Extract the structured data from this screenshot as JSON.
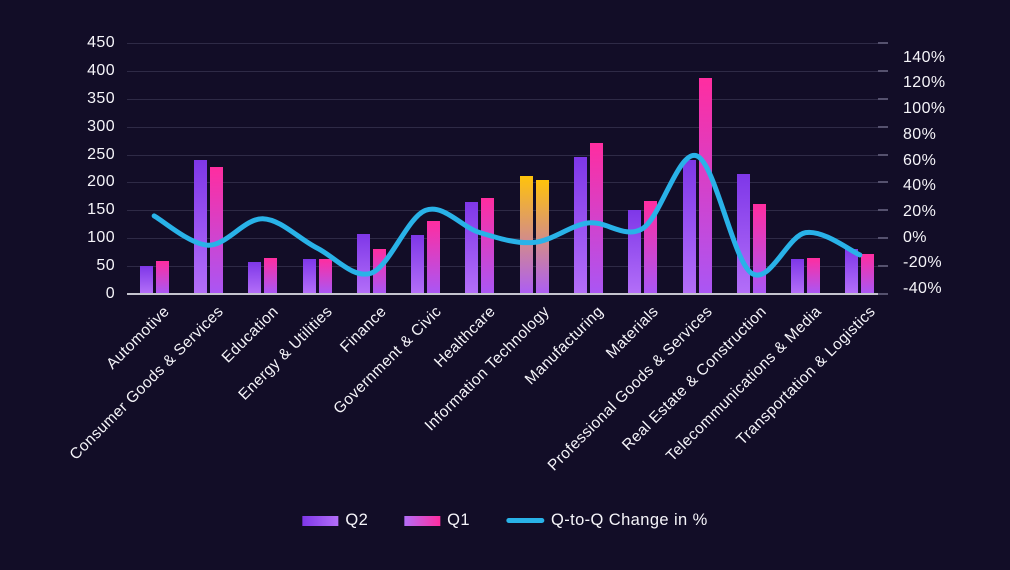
{
  "chart_data": {
    "type": "combo-bar-line",
    "title": "",
    "categories": [
      "Automotive",
      "Consumer Goods & Services",
      "Education",
      "Energy & Utilities",
      "Finance",
      "Government & Civic",
      "Healthcare",
      "Information Technology",
      "Manufacturing",
      "Materials",
      "Professional Goods & Services",
      "Real Estate & Construction",
      "Telecommunications & Media",
      "Transportation & Logistics"
    ],
    "series": [
      {
        "name": "Q2",
        "type": "bar",
        "axis": "left",
        "values": [
          50,
          240,
          57,
          62,
          107,
          105,
          165,
          212,
          245,
          150,
          240,
          215,
          62,
          80
        ]
      },
      {
        "name": "Q1",
        "type": "bar",
        "axis": "left",
        "values": [
          60,
          228,
          65,
          62,
          80,
          130,
          172,
          205,
          270,
          167,
          388,
          162,
          65,
          72
        ]
      },
      {
        "name": "Q-to-Q Change in %",
        "type": "line",
        "axis": "right",
        "values": [
          16,
          -5,
          14,
          -7,
          -25,
          20,
          4,
          -3,
          11,
          7,
          59,
          -25,
          4,
          -12
        ]
      }
    ],
    "highlight_category": "Information Technology",
    "left_axis": {
      "min": 0,
      "max": 450,
      "step": 50,
      "tick_labels": [
        "0",
        "50",
        "100",
        "150",
        "200",
        "250",
        "300",
        "350",
        "400",
        "450"
      ]
    },
    "right_axis": {
      "min": -40,
      "max": 140,
      "step": 20,
      "tick_labels_top_down": [
        "140%",
        "120%",
        "100%",
        "80%",
        "60%",
        "40%",
        "20%",
        "0%",
        "-20%",
        "-40%"
      ]
    },
    "legend_position": "bottom",
    "grid": true,
    "colors": {
      "background": "#120d27",
      "gridline": "#2e2a46",
      "axis_line": "#c4c3ce",
      "right_tick": "#55516e",
      "text": "#f5f4f9",
      "line": "#29b2e8",
      "q2_gradient_top": "#7e37e8",
      "q2_gradient_bottom": "#b36ef8",
      "q1_gradient_top": "#ff2da0",
      "q1_gradient_bottom": "#aa56f4",
      "highlight_gradient_top": "#ffc30b",
      "highlight_gradient_bottom": "#ad5ef3"
    }
  }
}
